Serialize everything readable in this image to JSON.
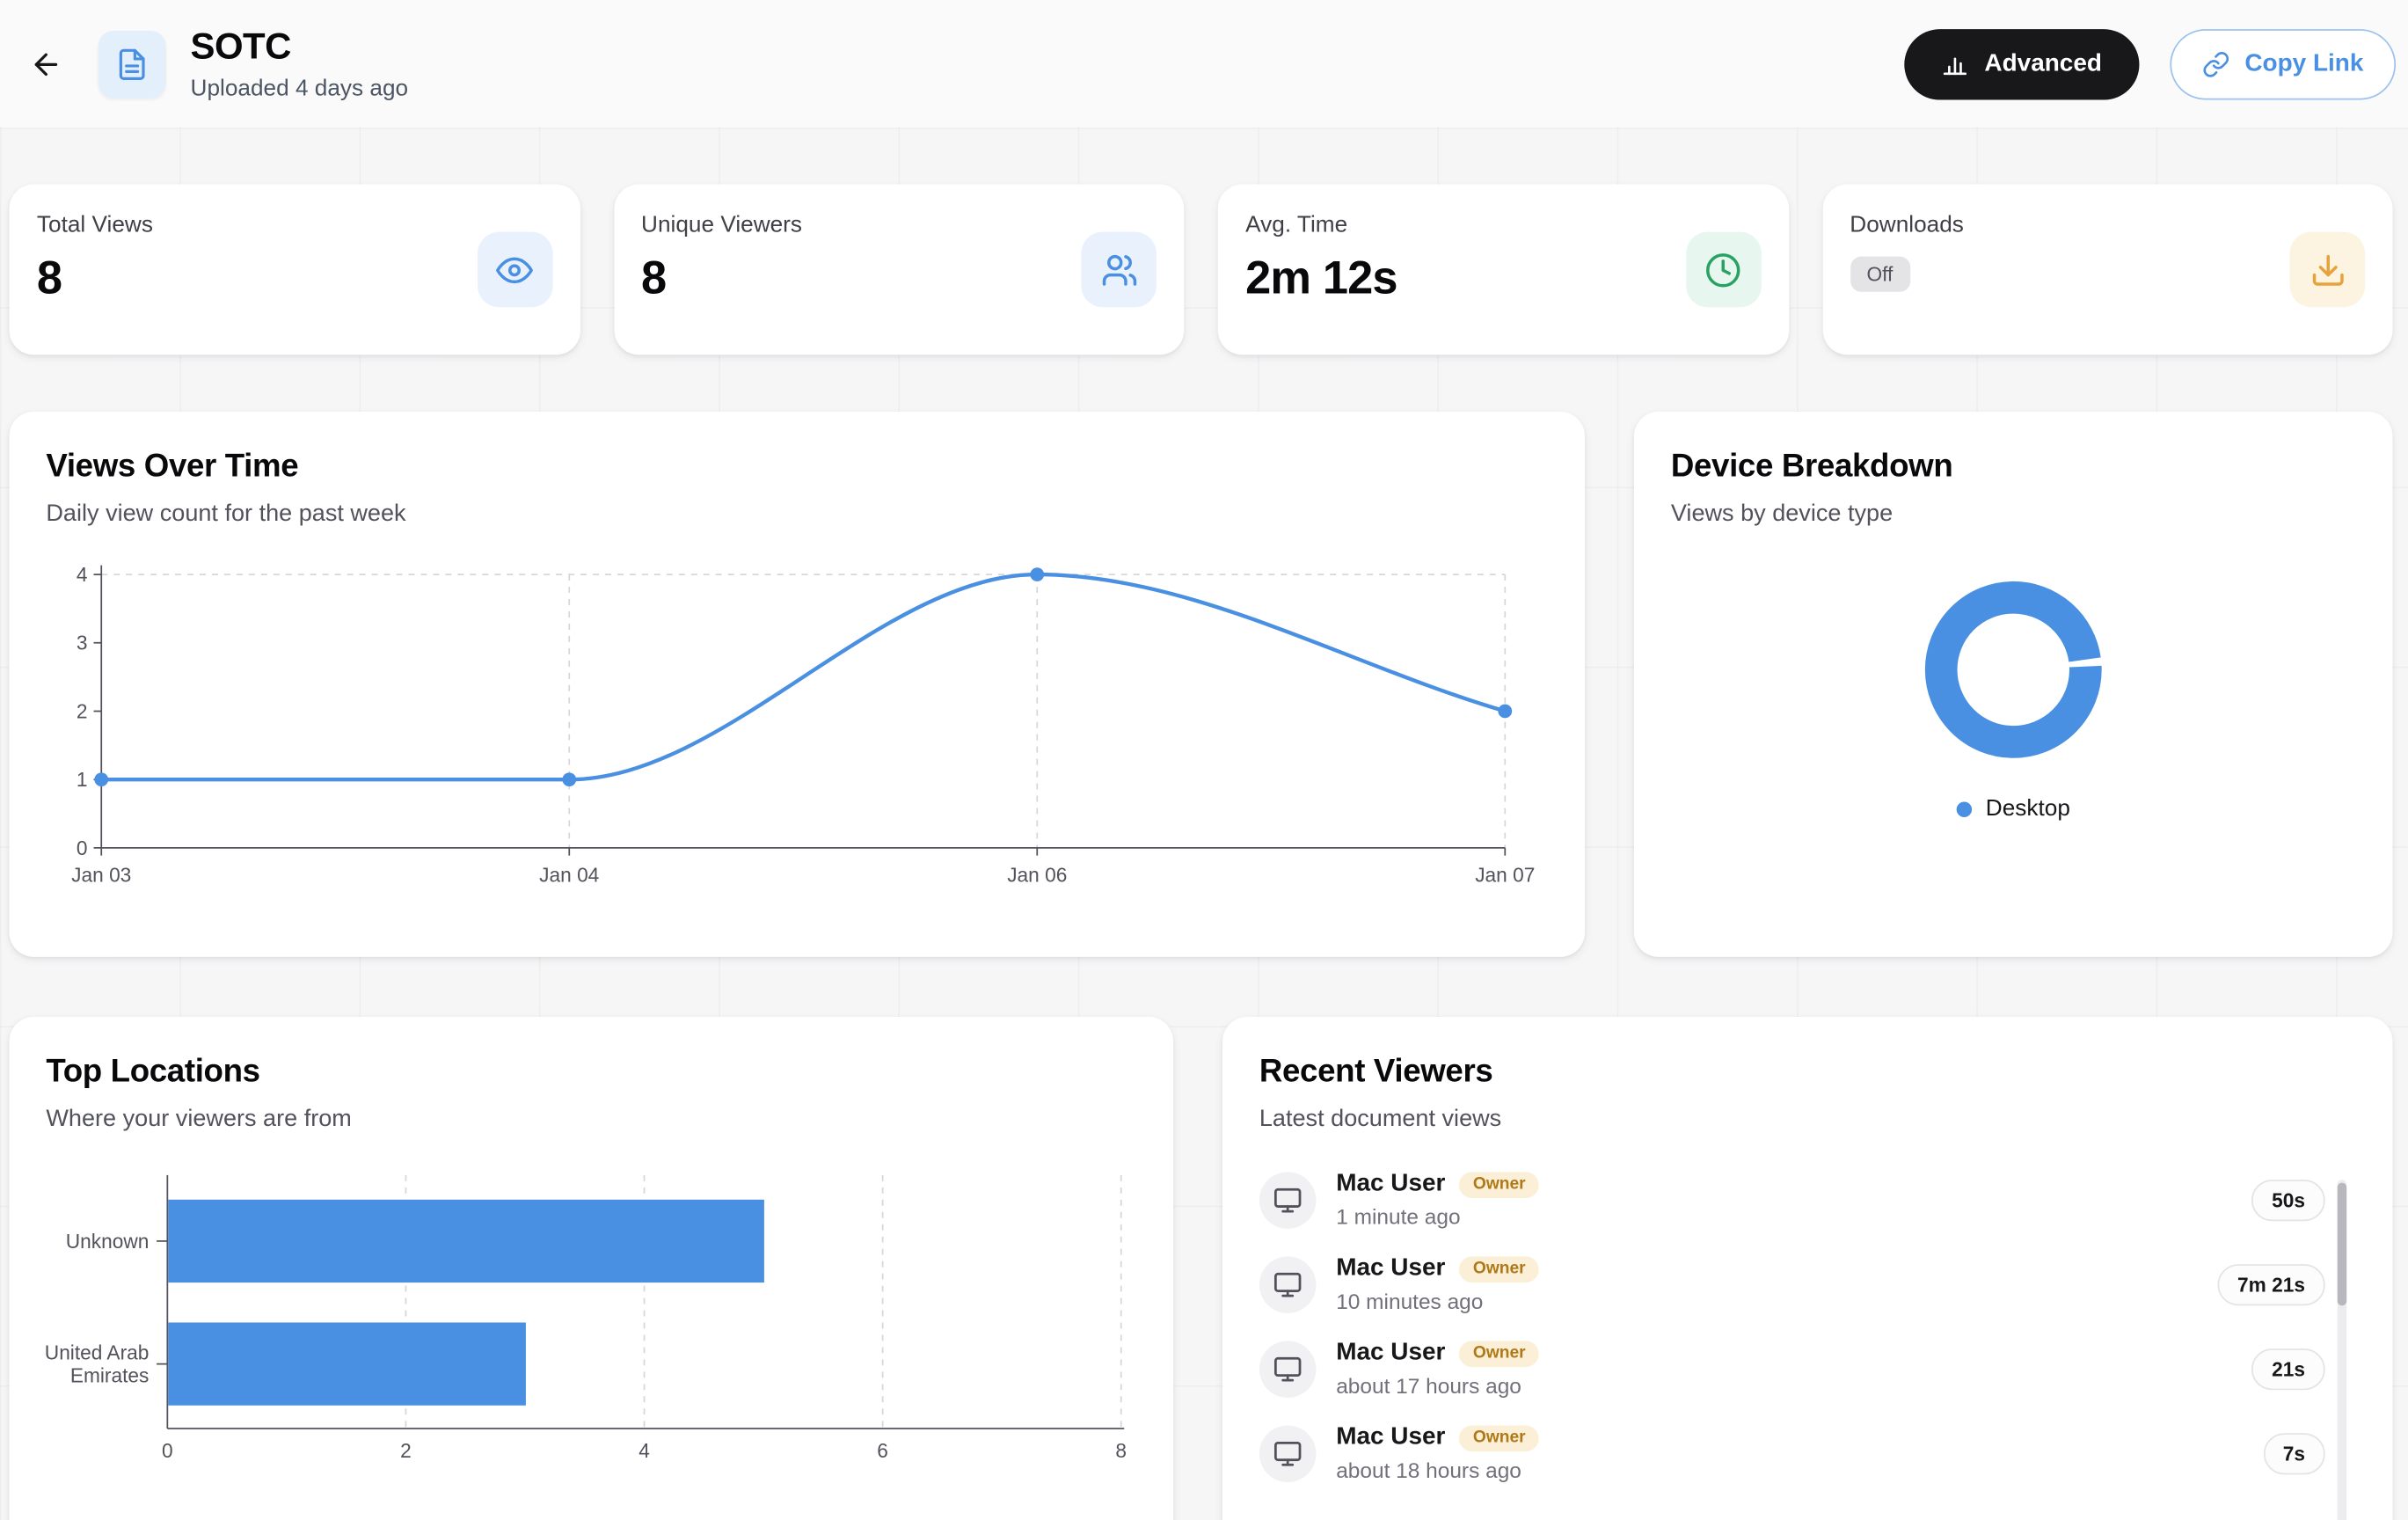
{
  "header": {
    "title": "SOTC",
    "subtitle": "Uploaded 4 days ago",
    "buttons": {
      "advanced": "Advanced",
      "copy_link": "Copy Link"
    }
  },
  "stats": [
    {
      "label": "Total Views",
      "value": "8",
      "icon": "eye-icon",
      "icon_bg": "#e8f1fc",
      "icon_color": "#4a90e2"
    },
    {
      "label": "Unique Viewers",
      "value": "8",
      "icon": "users-icon",
      "icon_bg": "#e8f1fc",
      "icon_color": "#4a90e2"
    },
    {
      "label": "Avg. Time",
      "value": "2m 12s",
      "icon": "clock-icon",
      "icon_bg": "#e7f6ee",
      "icon_color": "#28a263"
    },
    {
      "label": "Downloads",
      "badge": "Off",
      "icon": "download-icon",
      "icon_bg": "#fdf3e1",
      "icon_color": "#e7a23c"
    }
  ],
  "panels": {
    "views_over_time": {
      "title": "Views Over Time",
      "subtitle": "Daily view count for the past week"
    },
    "device_breakdown": {
      "title": "Device Breakdown",
      "subtitle": "Views by device type",
      "legend": "Desktop"
    },
    "top_locations": {
      "title": "Top Locations",
      "subtitle": "Where your viewers are from"
    },
    "recent_viewers": {
      "title": "Recent Viewers",
      "subtitle": "Latest document views"
    }
  },
  "recent_viewers_items": [
    {
      "name": "Mac User",
      "badge": "Owner",
      "time": "1 minute ago",
      "duration": "50s"
    },
    {
      "name": "Mac User",
      "badge": "Owner",
      "time": "10 minutes ago",
      "duration": "7m 21s"
    },
    {
      "name": "Mac User",
      "badge": "Owner",
      "time": "about 17 hours ago",
      "duration": "21s"
    },
    {
      "name": "Mac User",
      "badge": "Owner",
      "time": "about 18 hours ago",
      "duration": "7s"
    }
  ],
  "chart_data": [
    {
      "id": "views-over-time",
      "type": "line",
      "title": "Views Over Time",
      "x": [
        "Jan 03",
        "Jan 04",
        "Jan 06",
        "Jan 07"
      ],
      "values": [
        1,
        1,
        4,
        2
      ],
      "ylim": [
        0,
        4
      ],
      "yticks": [
        0,
        1,
        2,
        3,
        4
      ],
      "color": "#4a90e2",
      "grid": "dashed",
      "markers": true,
      "legend_position": "none"
    },
    {
      "id": "device-breakdown",
      "type": "pie",
      "donut": true,
      "labels": [
        "Desktop"
      ],
      "values": [
        8
      ],
      "share_pct": [
        100
      ],
      "colors": [
        "#4a90e2"
      ],
      "legend_position": "bottom"
    },
    {
      "id": "top-locations",
      "type": "bar",
      "orientation": "horizontal",
      "categories": [
        "Unknown",
        "United Arab Emirates"
      ],
      "values": [
        5,
        3
      ],
      "xlim": [
        0,
        8
      ],
      "xticks": [
        0,
        2,
        4,
        6,
        8
      ],
      "color": "#4a90e2",
      "grid": "dashed"
    }
  ],
  "colors": {
    "accent": "#4a90e2",
    "advanced_button_bg": "#18181b",
    "copy_link_border": "#9cc2ee",
    "owner_badge_bg": "#fbf0d7",
    "owner_badge_text": "#b07918"
  }
}
